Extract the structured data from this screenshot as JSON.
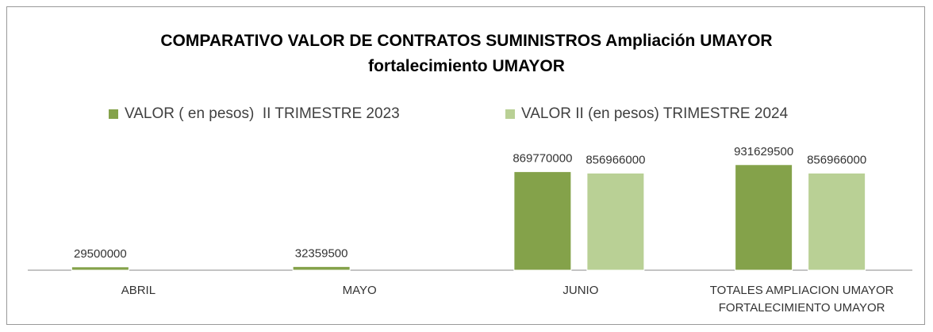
{
  "chart_data": {
    "type": "bar",
    "title": "COMPARATIVO VALOR DE CONTRATOS SUMINISTROS Ampliación UMAYOR fortalecimiento UMAYOR",
    "categories": [
      "ABRIL",
      "MAYO",
      "JUNIO",
      "TOTALES AMPLIACION UMAYOR FORTALECIMIENTO UMAYOR"
    ],
    "series": [
      {
        "name": "VALOR ( en pesos)  II TRIMESTRE 2023",
        "color": "#84a24a",
        "values": [
          29500000,
          32359500,
          869770000,
          931629500
        ]
      },
      {
        "name": "VALOR II (en pesos) TRIMESTRE 2024",
        "color": "#b9d095",
        "values": [
          null,
          null,
          856966000,
          856966000
        ]
      }
    ],
    "ylim": [
      0,
      1000000000
    ],
    "legend": "top"
  }
}
